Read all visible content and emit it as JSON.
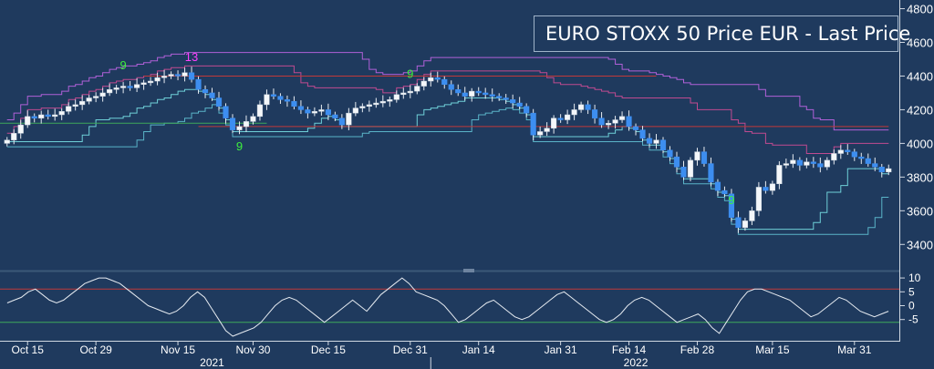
{
  "chart_data": [
    {
      "type": "candlestick",
      "title": "EURO STOXX 50 Price EUR - Last Price",
      "legend": {
        "label": "EURO STOXX 50 Price EUR - Last Price",
        "position": "top-right"
      },
      "y_ticks": [
        3400,
        3600,
        3800,
        4000,
        4200,
        4400,
        4600,
        4800
      ],
      "ylim": [
        3250,
        4830
      ],
      "x_tick_labels": [
        "Oct 15",
        "Oct 29",
        "Nov 15",
        "Nov 30",
        "Dec 15",
        "Dec 31",
        "Jan 14",
        "Jan 31",
        "Feb 14",
        "Feb 28",
        "Mar 15",
        "Mar 31"
      ],
      "x_tick_index": [
        3,
        13,
        25,
        36,
        47,
        59,
        69,
        81,
        91,
        101,
        112,
        124
      ],
      "years": [
        {
          "label": "2021",
          "index": 30
        },
        {
          "label": "2022",
          "index": 92
        }
      ],
      "closes": [
        4020,
        4060,
        4110,
        4160,
        4150,
        4170,
        4160,
        4170,
        4190,
        4220,
        4230,
        4250,
        4270,
        4280,
        4300,
        4320,
        4330,
        4340,
        4330,
        4350,
        4360,
        4370,
        4390,
        4400,
        4410,
        4400,
        4420,
        4380,
        4320,
        4300,
        4270,
        4220,
        4150,
        4080,
        4100,
        4130,
        4160,
        4230,
        4290,
        4280,
        4260,
        4250,
        4220,
        4200,
        4180,
        4190,
        4200,
        4170,
        4150,
        4110,
        4180,
        4210,
        4220,
        4230,
        4240,
        4250,
        4260,
        4290,
        4300,
        4310,
        4340,
        4370,
        4390,
        4380,
        4350,
        4320,
        4300,
        4280,
        4310,
        4300,
        4290,
        4280,
        4270,
        4260,
        4240,
        4220,
        4180,
        4050,
        4070,
        4090,
        4150,
        4140,
        4170,
        4200,
        4230,
        4200,
        4150,
        4110,
        4120,
        4140,
        4160,
        4100,
        4080,
        4030,
        4000,
        4020,
        3960,
        3920,
        3860,
        3800,
        3900,
        3950,
        3880,
        3770,
        3720,
        3700,
        3560,
        3500,
        3540,
        3600,
        3740,
        3720,
        3760,
        3870,
        3880,
        3900,
        3870,
        3890,
        3880,
        3860,
        3900,
        3940,
        3960,
        3950,
        3920,
        3910,
        3880,
        3860,
        3830,
        3850
      ],
      "support_level": 4100,
      "resistance_level": 4400,
      "sequential_counts": [
        {
          "label": "9",
          "index": 17,
          "value": 4440,
          "color": "#3ef03e"
        },
        {
          "label": "13",
          "index": 27,
          "value": 4490,
          "color": "#ff40ff"
        },
        {
          "label": "9",
          "index": 34,
          "value": 3960,
          "color": "#3ef03e"
        },
        {
          "label": "9",
          "index": 59,
          "value": 4390,
          "color": "#3ef03e"
        },
        {
          "label": "9",
          "index": 106,
          "value": 3640,
          "color": "#3ef03e"
        }
      ]
    },
    {
      "type": "line",
      "yticks": [
        10,
        5,
        0,
        -5
      ],
      "ylim": [
        -12,
        12
      ],
      "upper_band": 6,
      "lower_band": -6,
      "values": [
        1,
        2,
        3,
        5,
        6,
        4,
        2,
        1,
        2,
        4,
        6,
        8,
        9,
        10,
        10,
        9,
        8,
        6,
        4,
        2,
        0,
        -1,
        -2,
        -3,
        -2,
        0,
        3,
        5,
        3,
        -1,
        -5,
        -9,
        -11,
        -10,
        -9,
        -8,
        -6,
        -3,
        0,
        2,
        3,
        2,
        0,
        -2,
        -4,
        -6,
        -4,
        -2,
        0,
        2,
        0,
        -2,
        1,
        4,
        6,
        8,
        10,
        8,
        5,
        4,
        3,
        2,
        0,
        -3,
        -6,
        -5,
        -3,
        -1,
        1,
        2,
        0,
        -2,
        -4,
        -5,
        -4,
        -2,
        0,
        2,
        4,
        5,
        3,
        1,
        -1,
        -3,
        -5,
        -6,
        -5,
        -3,
        0,
        2,
        3,
        2,
        0,
        -2,
        -4,
        -6,
        -5,
        -4,
        -3,
        -5,
        -8,
        -10,
        -6,
        -2,
        2,
        5,
        6,
        6,
        5,
        4,
        3,
        2,
        0,
        -2,
        -4,
        -3,
        -1,
        1,
        3,
        2,
        0,
        -2,
        -3,
        -4,
        -3,
        -2
      ]
    }
  ],
  "legend_label": "EURO STOXX 50 Price EUR - Last Price"
}
